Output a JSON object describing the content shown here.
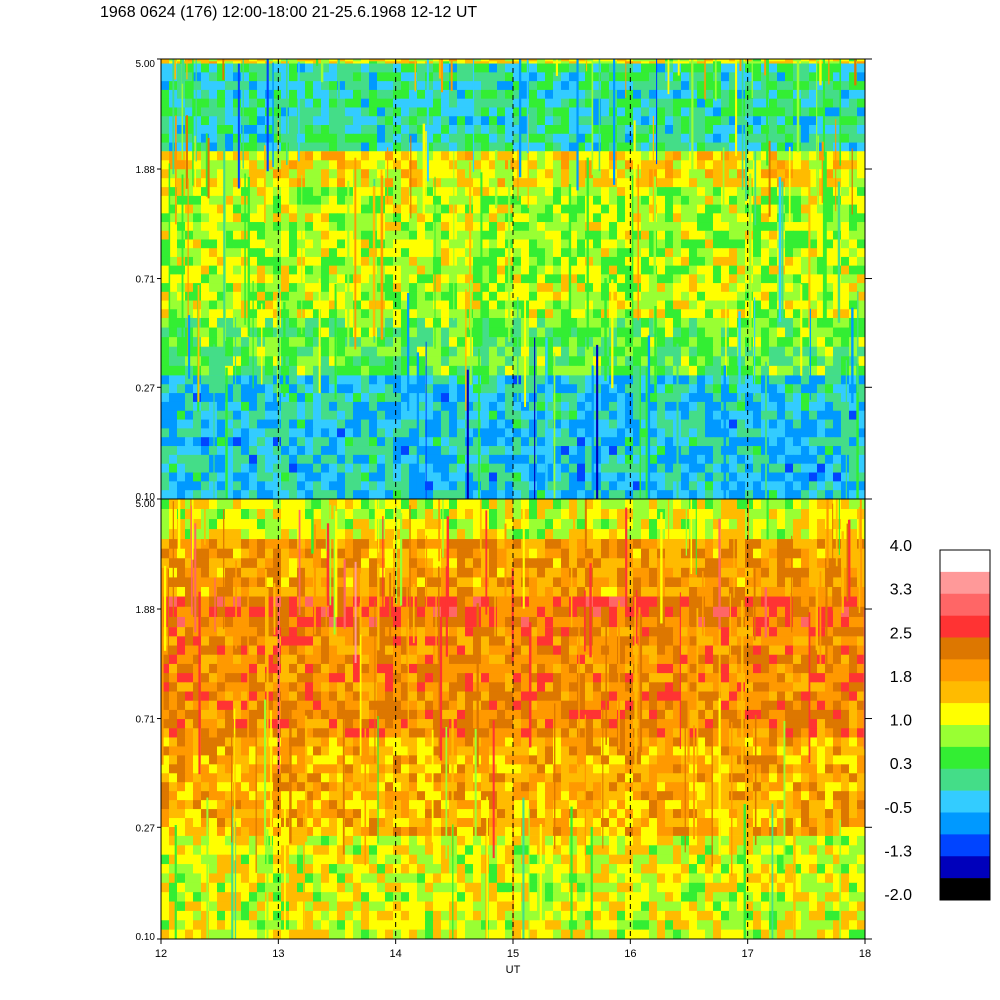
{
  "title": "1968 0624 (176) 12:00-18:00 21-25.6.1968  12-12 UT",
  "chart_data": [
    {
      "type": "heatmap",
      "panel": "top",
      "xlabel": "",
      "ylabel": "",
      "x_range": [
        12,
        18
      ],
      "y_range": [
        0.1,
        5.0
      ],
      "y_scale": "log",
      "y_ticks": [
        "0.10",
        "0.27",
        "0.71",
        "1.88",
        "5.00"
      ],
      "y_tick_values": [
        0.1,
        0.27,
        0.71,
        1.88,
        5.0
      ],
      "dashed_vertical_lines_at": [
        13,
        14,
        15,
        16,
        17
      ],
      "bands": [
        {
          "y_from": 4.8,
          "y_to": 5.0,
          "value": 1.2
        },
        {
          "y_from": 2.2,
          "y_to": 4.8,
          "value": 0.0
        },
        {
          "y_from": 1.6,
          "y_to": 2.2,
          "value": 1.3
        },
        {
          "y_from": 0.5,
          "y_to": 1.6,
          "value": 0.9
        },
        {
          "y_from": 0.3,
          "y_to": 0.5,
          "value": 0.5
        },
        {
          "y_from": 0.1,
          "y_to": 0.3,
          "value": -0.3
        }
      ]
    },
    {
      "type": "heatmap",
      "panel": "bottom",
      "xlabel": "UT",
      "ylabel": "",
      "x_range": [
        12,
        18
      ],
      "y_range": [
        0.1,
        5.0
      ],
      "y_scale": "log",
      "x_ticks": [
        "12",
        "13",
        "14",
        "15",
        "16",
        "17",
        "18"
      ],
      "x_tick_values": [
        12,
        13,
        14,
        15,
        16,
        17,
        18
      ],
      "y_ticks": [
        "0.10",
        "0.27",
        "0.71",
        "1.88",
        "5.00"
      ],
      "y_tick_values": [
        0.1,
        0.27,
        0.71,
        1.88,
        5.0
      ],
      "dashed_vertical_lines_at": [
        13,
        14,
        15,
        16,
        17
      ],
      "bands": [
        {
          "y_from": 3.5,
          "y_to": 5.0,
          "value": 1.1
        },
        {
          "y_from": 2.1,
          "y_to": 3.5,
          "value": 1.9
        },
        {
          "y_from": 1.6,
          "y_to": 2.1,
          "value": 2.4
        },
        {
          "y_from": 0.6,
          "y_to": 1.6,
          "value": 2.1
        },
        {
          "y_from": 0.25,
          "y_to": 0.6,
          "value": 1.7
        },
        {
          "y_from": 0.1,
          "y_to": 0.25,
          "value": 1.1
        }
      ]
    }
  ],
  "colorbar": {
    "labels": [
      "4.0",
      "3.3",
      "2.5",
      "1.8",
      "1.0",
      "0.3",
      "-0.5",
      "-1.3",
      "-2.0"
    ],
    "colors_top_to_bottom": [
      "#ffffff",
      "#ff9999",
      "#ff6666",
      "#ff3333",
      "#dd7700",
      "#ff9900",
      "#ffbb00",
      "#ffff00",
      "#99ff33",
      "#33ee33",
      "#44dd88",
      "#33ccff",
      "#0099ff",
      "#0044ff",
      "#0000bb",
      "#000000"
    ],
    "range": [
      -2.0,
      4.0
    ]
  }
}
